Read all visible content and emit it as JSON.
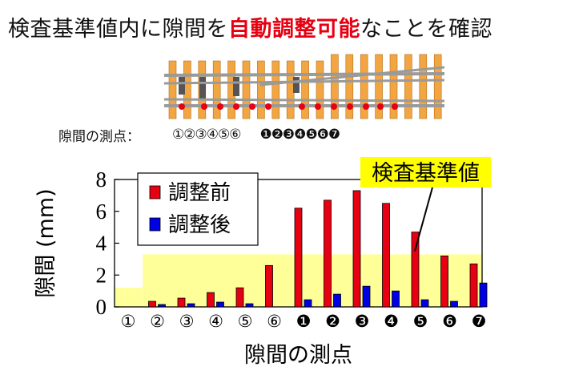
{
  "title": {
    "prefix": "検査基準値内に隙間を",
    "highlight": "自動調整可能",
    "suffix": "なことを確認"
  },
  "measurement_points": {
    "label": "隙間の測点：",
    "group1": "①②③④⑤⑥",
    "group2": "❶❷❸❹❺❻❼"
  },
  "colors": {
    "before": "#e60012",
    "after": "#0000e6",
    "tolerance": "#ffff99",
    "tie": "#f2a541",
    "marker": "#e60012"
  },
  "chart_data": {
    "type": "bar",
    "title": "",
    "xlabel": "隙間の測点",
    "ylabel": "隙間 (mm)",
    "ylim": [
      0,
      8
    ],
    "yticks": [
      "0",
      "2",
      "4",
      "6",
      "8"
    ],
    "categories": [
      "①",
      "②",
      "③",
      "④",
      "⑤",
      "⑥",
      "❶",
      "❷",
      "❸",
      "❹",
      "❺",
      "❻",
      "❼"
    ],
    "series": [
      {
        "name": "調整前",
        "values": [
          0,
          0.35,
          0.55,
          0.9,
          1.2,
          2.6,
          6.2,
          6.7,
          7.3,
          6.5,
          4.7,
          3.2,
          2.7
        ]
      },
      {
        "name": "調整後",
        "values": [
          0,
          0.15,
          0.2,
          0.3,
          0.2,
          0,
          0.45,
          0.8,
          1.3,
          1.0,
          0.45,
          0.35,
          1.5
        ]
      }
    ],
    "tolerance_band": {
      "label": "検査基準値",
      "segments": [
        {
          "x_from": "①",
          "x_to": "①",
          "upper": 1.2
        },
        {
          "x_from": "②",
          "x_to": "❼",
          "upper": 3.3
        }
      ]
    },
    "legend": "top-left",
    "grid": false
  }
}
